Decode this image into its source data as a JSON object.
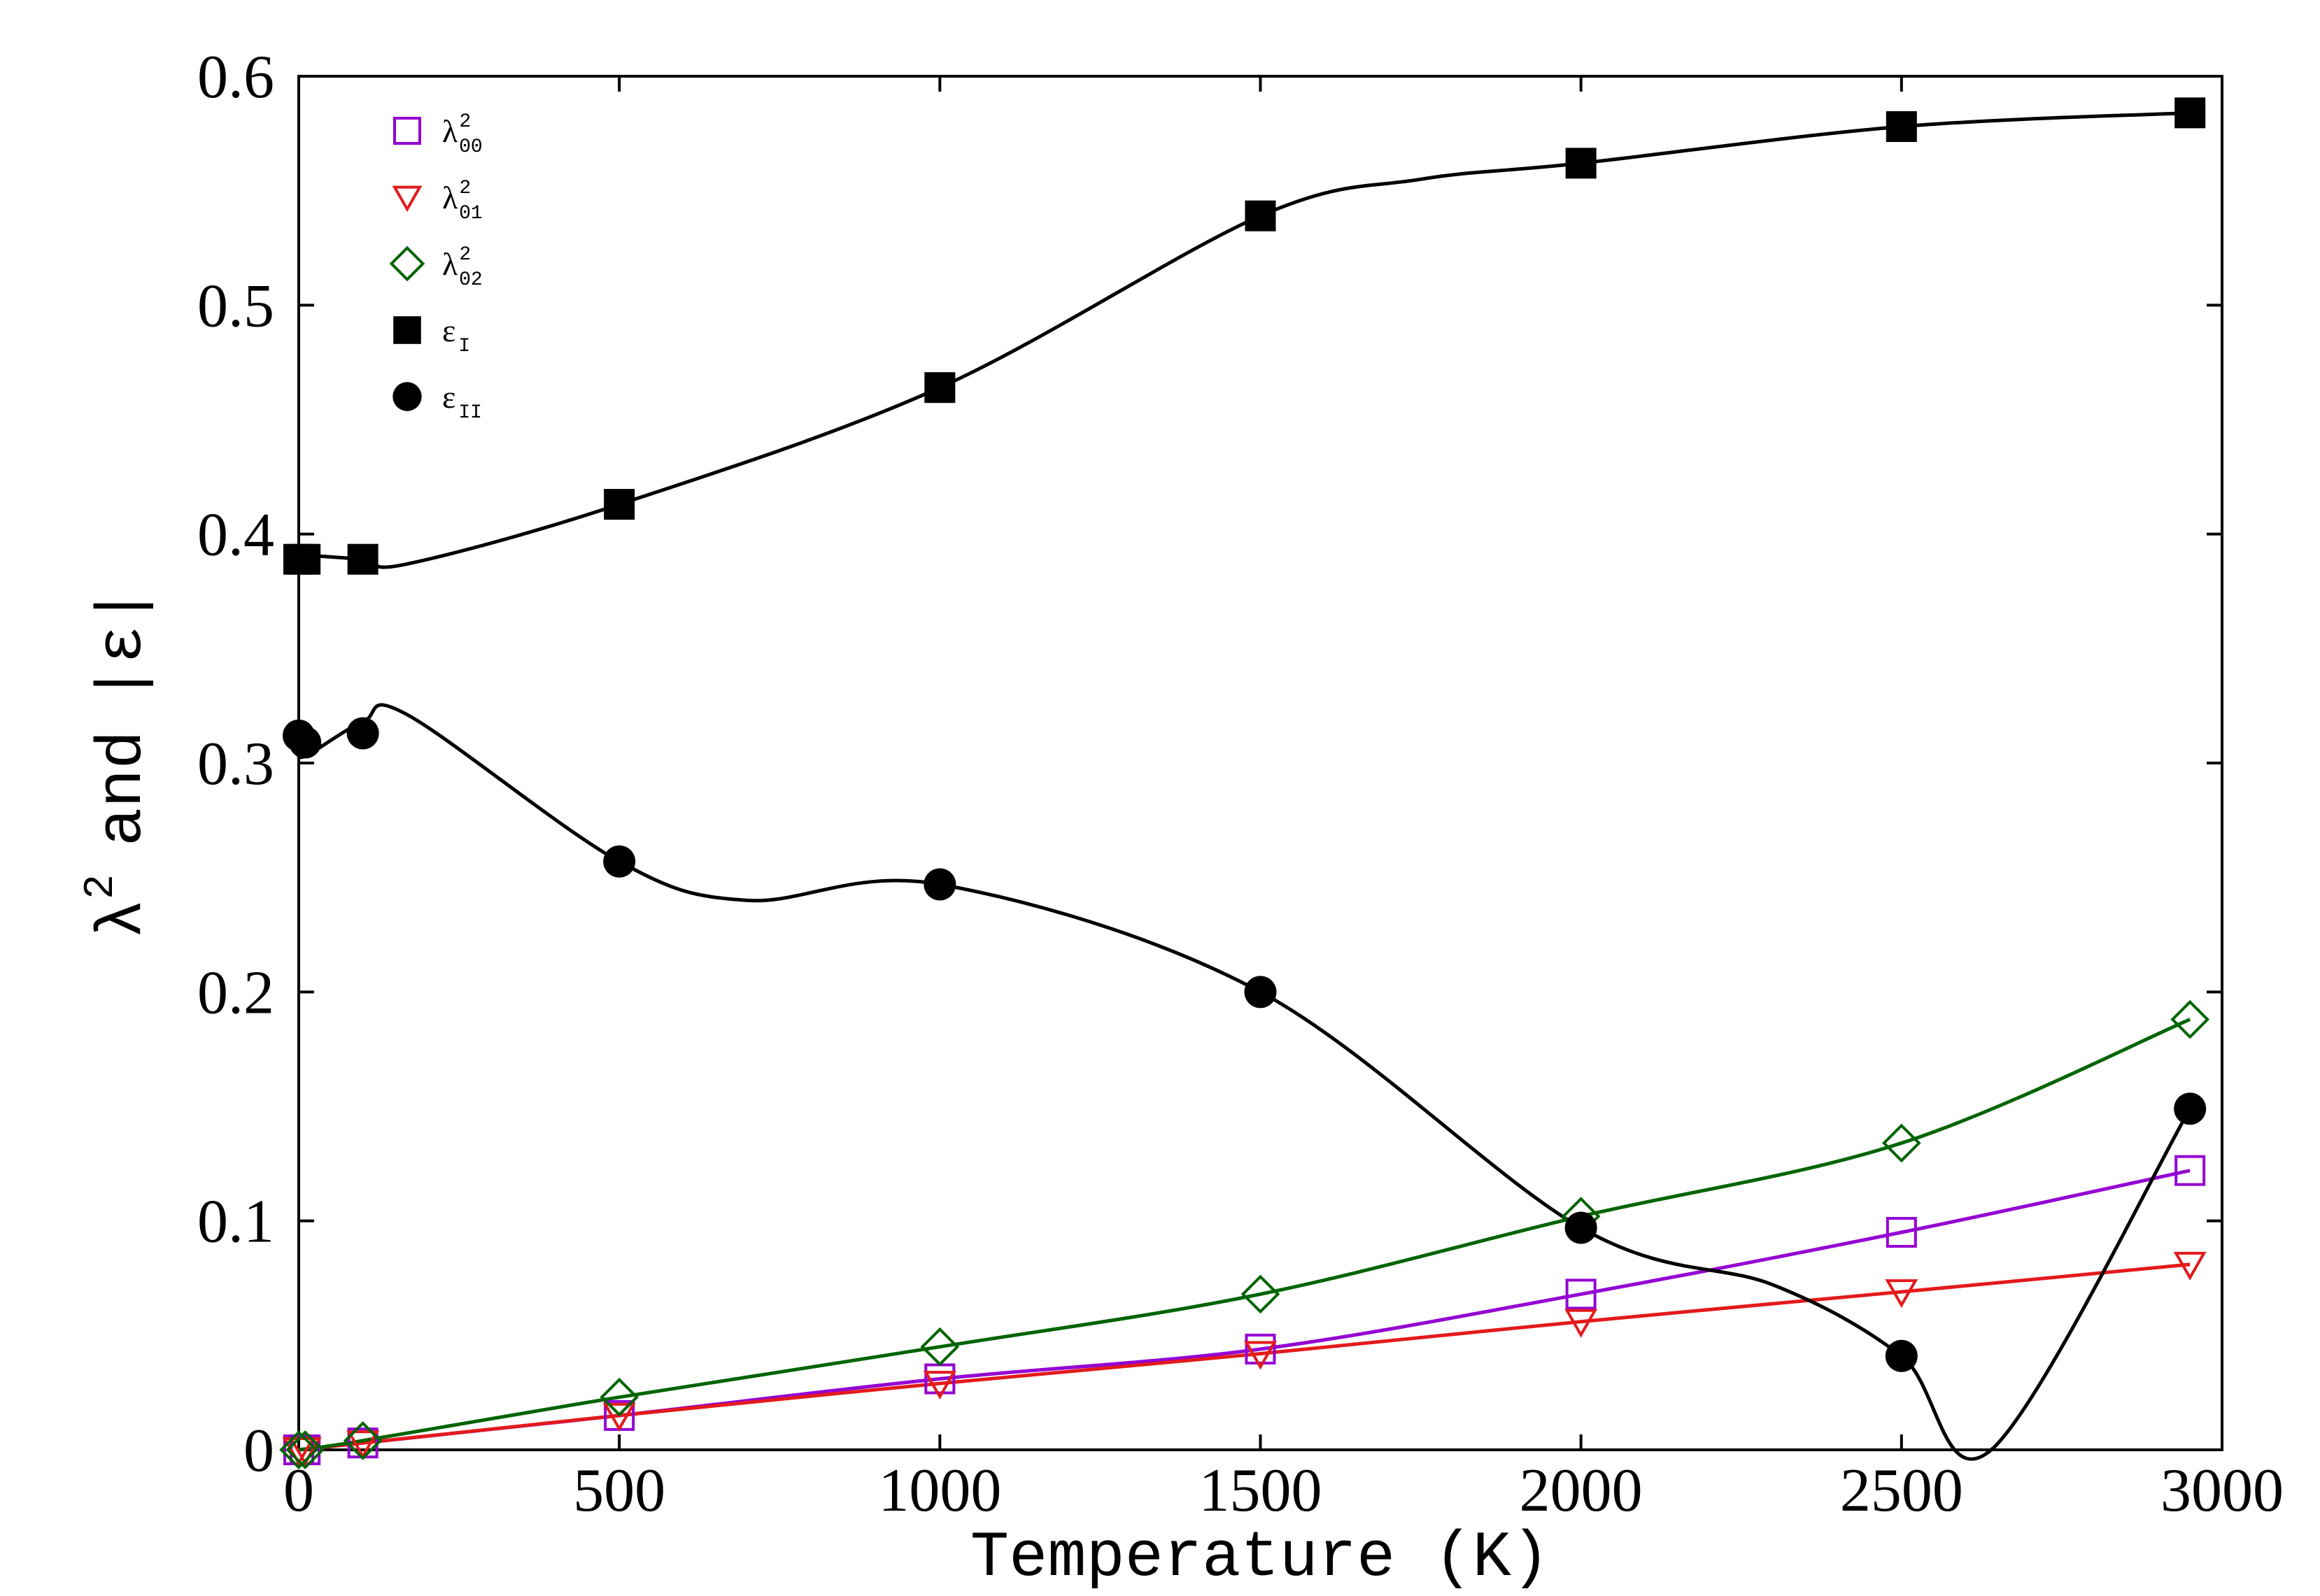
{
  "chart_data": {
    "type": "line",
    "title": "",
    "xlabel": "Temperature (K)",
    "ylabel": {
      "base": "λ",
      "power": "2",
      "middle": "and",
      "bar": "|",
      "symbol": "ε"
    },
    "xlim": [
      0,
      3000
    ],
    "ylim": [
      0,
      0.6
    ],
    "xticks": [
      0,
      500,
      1000,
      1500,
      2000,
      2500,
      3000
    ],
    "xtick_labels": [
      "0",
      "500",
      "1000",
      "1500",
      "2000",
      "2500",
      "3000"
    ],
    "yticks": [
      0,
      0.1,
      0.2,
      0.3,
      0.4,
      0.5,
      0.6
    ],
    "ytick_labels": [
      "0",
      "0.1",
      "0.2",
      "0.3",
      "0.4",
      "0.5",
      "0.6"
    ],
    "grid": false,
    "legend_position": "top-left",
    "series": [
      {
        "name": "λ²₀₀",
        "base": "λ",
        "sup": "2",
        "sub": "00",
        "marker": "open-square",
        "color": "#9400d3",
        "x": [
          0,
          10,
          100,
          500,
          1000,
          1500,
          2000,
          2500,
          2950
        ],
        "y": [
          0.0,
          0.0,
          0.003,
          0.015,
          0.031,
          0.044,
          0.068,
          0.095,
          0.122
        ]
      },
      {
        "name": "λ²₀₁",
        "base": "λ",
        "sup": "2",
        "sub": "01",
        "marker": "open-triangle-down",
        "color": "#e31a1c",
        "x": [
          0,
          10,
          100,
          500,
          1000,
          1500,
          2000,
          2500,
          2950
        ],
        "y": [
          0.0,
          0.0,
          0.003,
          0.015,
          0.029,
          0.042,
          0.056,
          0.069,
          0.081
        ]
      },
      {
        "name": "λ²₀₂",
        "base": "λ",
        "sup": "2",
        "sub": "02",
        "marker": "open-diamond",
        "color": "#006400",
        "x": [
          0,
          10,
          100,
          500,
          1000,
          1500,
          2000,
          2500,
          2950
        ],
        "y": [
          0.0,
          0.0,
          0.004,
          0.023,
          0.045,
          0.068,
          0.102,
          0.134,
          0.188
        ]
      },
      {
        "name": "εI",
        "base": "ε",
        "sup": "",
        "sub": "I",
        "marker": "filled-square",
        "color": "#000000",
        "x": [
          0,
          10,
          100,
          500,
          1000,
          1500,
          2000,
          2500,
          2950
        ],
        "y": [
          0.389,
          0.389,
          0.389,
          0.413,
          0.464,
          0.539,
          0.562,
          0.578,
          0.584
        ]
      },
      {
        "name": "εII",
        "base": "ε",
        "sup": "",
        "sub": "II",
        "marker": "filled-circle",
        "color": "#000000",
        "x": [
          0,
          10,
          100,
          500,
          1000,
          1500,
          2000,
          2500,
          2950
        ],
        "y": [
          0.312,
          0.309,
          0.313,
          0.257,
          0.247,
          0.2,
          0.097,
          0.041,
          0.149
        ]
      }
    ],
    "curves": [
      {
        "series": "λ²₀₀",
        "color": "#9400d3",
        "x": [
          0,
          100,
          500,
          1000,
          1500,
          2000,
          2500,
          2950
        ],
        "y": [
          0.0,
          0.003,
          0.015,
          0.031,
          0.044,
          0.068,
          0.095,
          0.122
        ]
      },
      {
        "series": "λ²₀₁",
        "color": "#e31a1c",
        "x": [
          0,
          100,
          500,
          1000,
          1500,
          2000,
          2500,
          2950
        ],
        "y": [
          0.0,
          0.003,
          0.015,
          0.029,
          0.042,
          0.056,
          0.069,
          0.081
        ]
      },
      {
        "series": "λ²₀₂",
        "color": "#006400",
        "x": [
          0,
          100,
          500,
          1000,
          1500,
          2000,
          2500,
          2950
        ],
        "y": [
          0.0,
          0.004,
          0.023,
          0.045,
          0.068,
          0.102,
          0.134,
          0.188
        ]
      },
      {
        "series": "εI",
        "color": "#000000",
        "x": [
          0,
          100,
          170,
          500,
          1000,
          1500,
          1750,
          2000,
          2500,
          2950
        ],
        "y": [
          0.391,
          0.389,
          0.387,
          0.413,
          0.464,
          0.539,
          0.555,
          0.562,
          0.578,
          0.584
        ]
      },
      {
        "series": "εII",
        "color": "#000000",
        "x": [
          0,
          10,
          100,
          170,
          500,
          700,
          1000,
          1500,
          2000,
          2300,
          2500,
          2640,
          2950
        ],
        "y": [
          0.306,
          0.303,
          0.318,
          0.321,
          0.257,
          0.24,
          0.247,
          0.2,
          0.097,
          0.072,
          0.041,
          0.0,
          0.149
        ]
      }
    ]
  }
}
